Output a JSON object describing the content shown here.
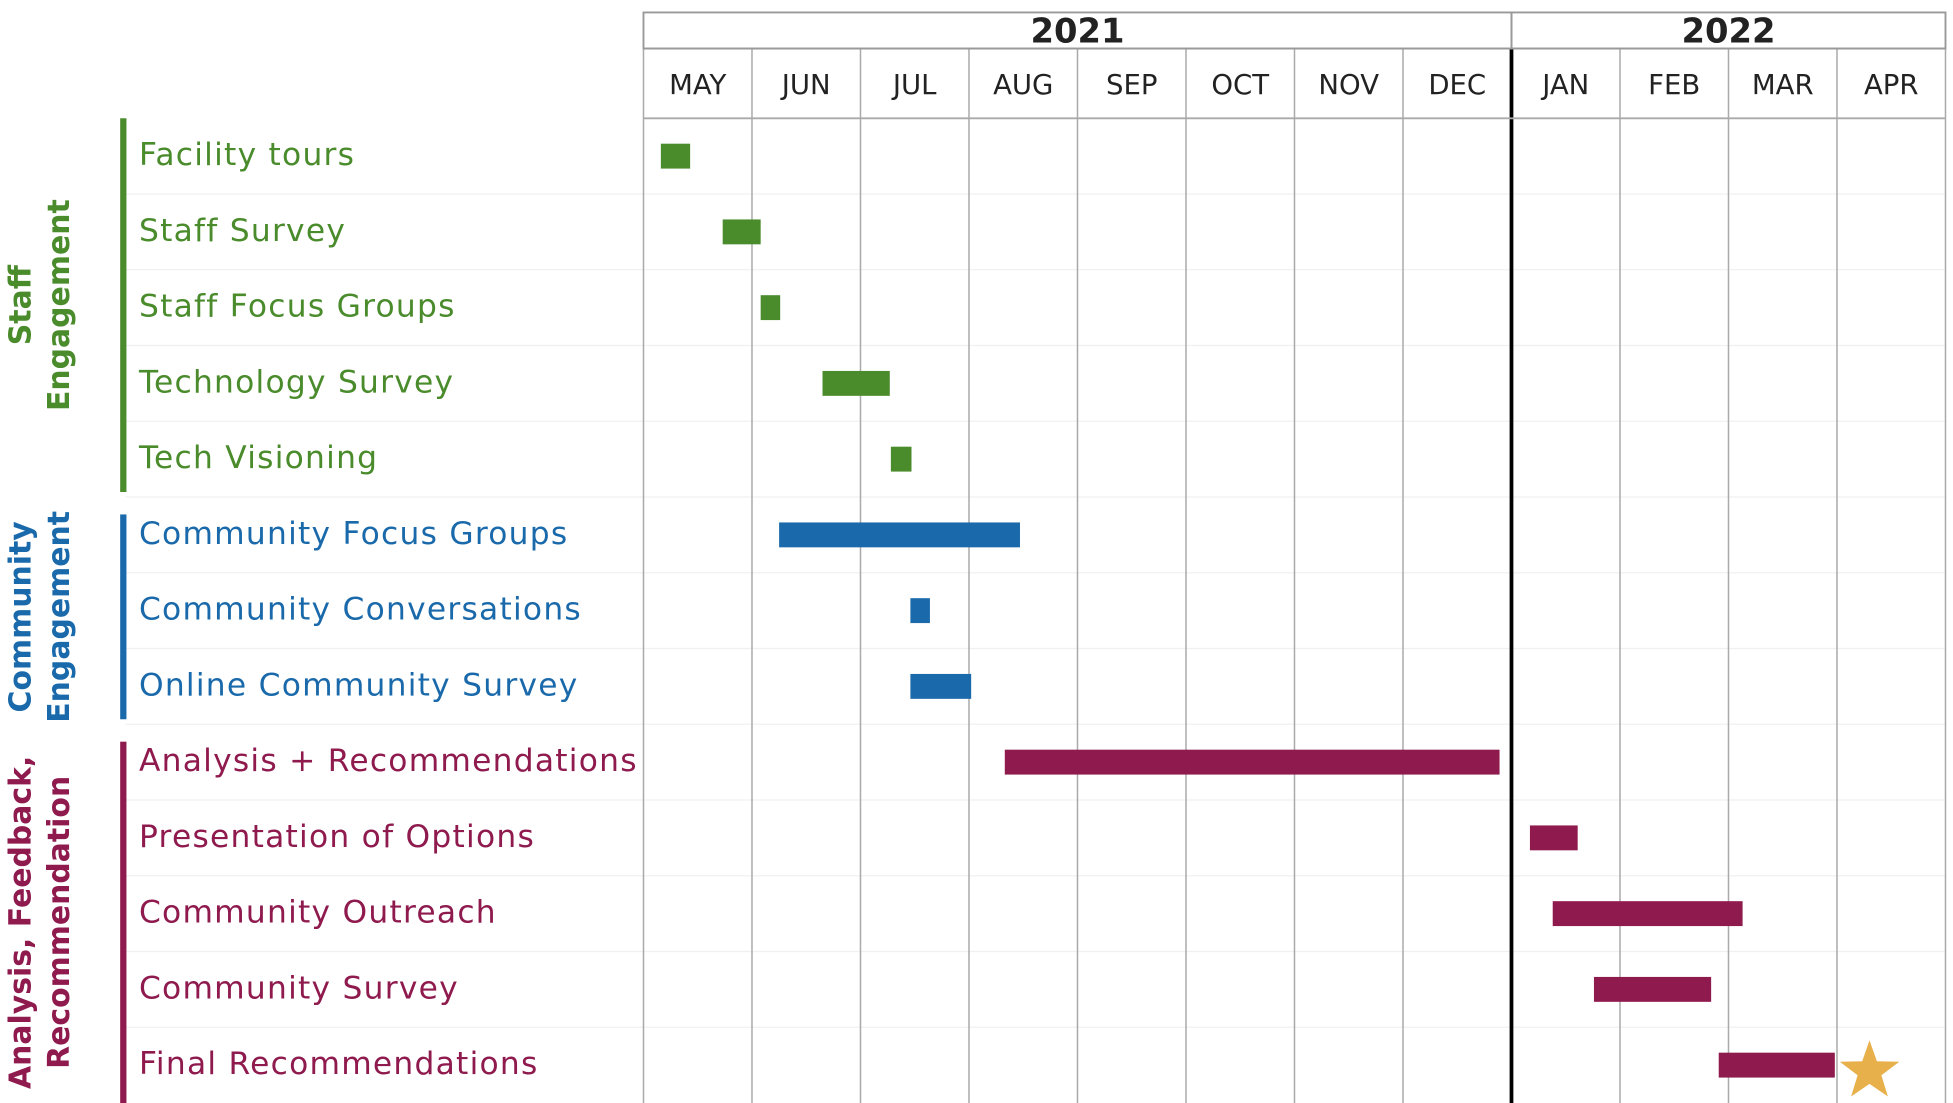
{
  "chart_data": {
    "type": "gantt",
    "categories": [
      "MAY",
      "JUN",
      "JUL",
      "AUG",
      "SEP",
      "OCT",
      "NOV",
      "DEC",
      "JAN",
      "FEB",
      "MAR",
      "APR"
    ],
    "xlim": [
      0,
      12
    ],
    "xticks": [
      0,
      1,
      2,
      3,
      4,
      5,
      6,
      7,
      8,
      9,
      10,
      11,
      12
    ],
    "years": [
      {
        "name": "2021",
        "start": 0,
        "end": 8
      },
      {
        "name": "2022",
        "start": 8,
        "end": 12
      }
    ],
    "groups": [
      {
        "label_lines": [
          "Staff",
          "Engagement"
        ],
        "color": "#4a8b2c"
      },
      {
        "label_lines": [
          "Community",
          "Engagement"
        ],
        "color": "#1a6aab"
      },
      {
        "label_lines": [
          "Analysis, Feedback,",
          "Recommendation"
        ],
        "color": "#8f1a4e"
      }
    ],
    "tasks": [
      {
        "name": "Facility tours",
        "group": 0,
        "start": 0.16,
        "end": 0.43
      },
      {
        "name": "Staff Survey",
        "group": 0,
        "start": 0.73,
        "end": 1.08
      },
      {
        "name": "Staff Focus Groups",
        "group": 0,
        "start": 1.08,
        "end": 1.26
      },
      {
        "name": "Technology Survey",
        "group": 0,
        "start": 1.65,
        "end": 2.27
      },
      {
        "name": "Tech Visioning",
        "group": 0,
        "start": 2.28,
        "end": 2.47
      },
      {
        "name": "Community Focus Groups",
        "group": 1,
        "start": 1.25,
        "end": 3.47
      },
      {
        "name": "Community Conversations",
        "group": 1,
        "start": 2.46,
        "end": 2.64
      },
      {
        "name": "Online Community Survey",
        "group": 1,
        "start": 2.46,
        "end": 3.02
      },
      {
        "name": "Analysis + Recommendations",
        "group": 2,
        "start": 3.33,
        "end": 7.89
      },
      {
        "name": "Presentation of Options",
        "group": 2,
        "start": 8.17,
        "end": 8.61
      },
      {
        "name": "Community Outreach",
        "group": 2,
        "start": 8.38,
        "end": 10.13
      },
      {
        "name": "Community Survey",
        "group": 2,
        "start": 8.76,
        "end": 9.84
      },
      {
        "name": "Final Recommendations",
        "group": 2,
        "start": 9.91,
        "end": 10.98
      }
    ],
    "milestone": {
      "value": 11.3,
      "color": "#e8b04b"
    }
  }
}
